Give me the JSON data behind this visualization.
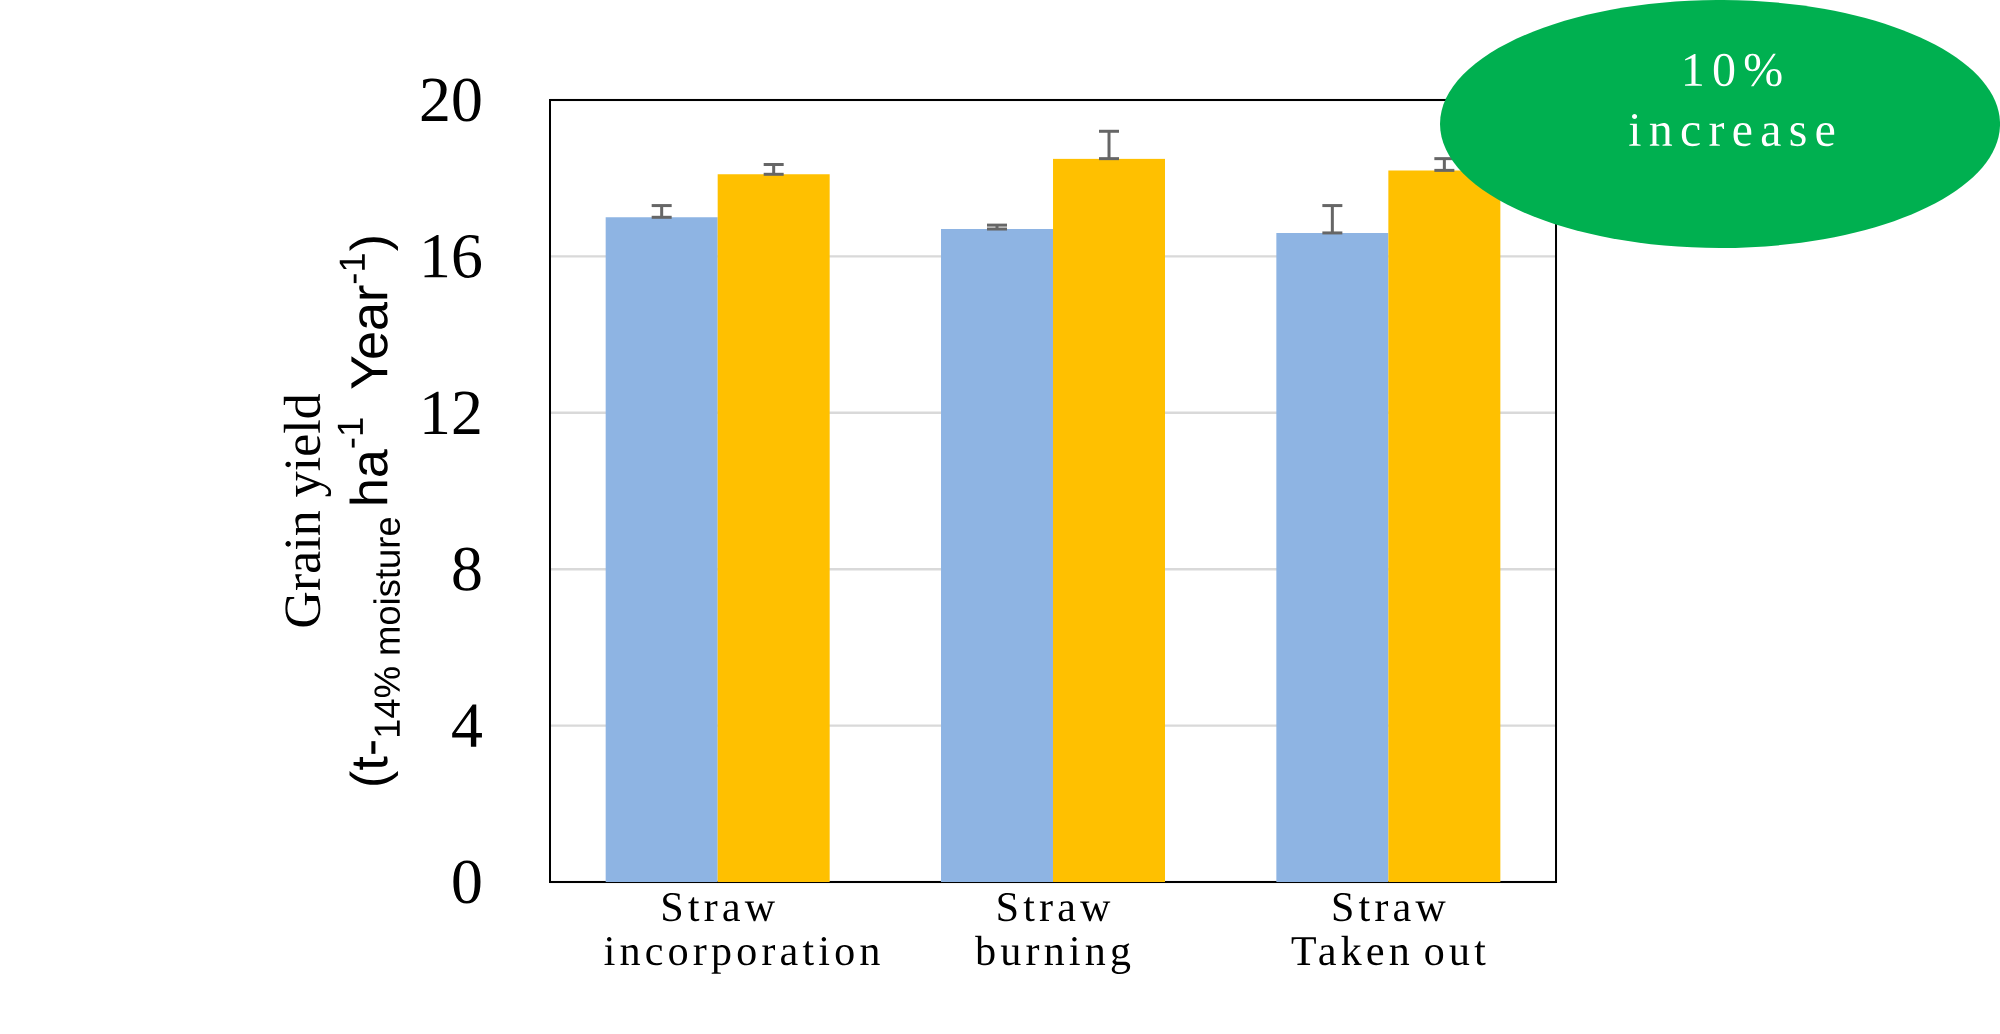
{
  "chart_data": {
    "type": "bar",
    "ylabel": "\\begin{array}{c}\\text{Grain yield}\\\\ \\textsf{(t-}_{\\textsf{14\\% moisture}}\\,\\textsf{ha}^{\\textsf{-1}}\\ \\ \\textsf{Year}^{\\textsf{-1}}\\textsf{)}\\end{array}",
    "categories": [
      "Straw incorporation",
      "Straw burning",
      "Straw Taken out"
    ],
    "series": [
      {
        "color": "#8eb4e3",
        "values": [
          17.0,
          16.7,
          16.6
        ],
        "errors": [
          [
            17.0,
            17.3
          ],
          [
            16.7,
            16.8
          ],
          [
            16.6,
            17.3
          ]
        ]
      },
      {
        "color": "#ffc000",
        "values": [
          18.1,
          18.5,
          18.2
        ],
        "errors": [
          [
            18.1,
            18.35
          ],
          [
            18.5,
            19.2
          ],
          [
            18.2,
            18.5
          ]
        ]
      }
    ],
    "ylim": [
      0,
      20
    ],
    "yticks": [
      0,
      4,
      8,
      12,
      16,
      20
    ],
    "grid": "y",
    "annotations": [
      "10% increase"
    ]
  }
}
